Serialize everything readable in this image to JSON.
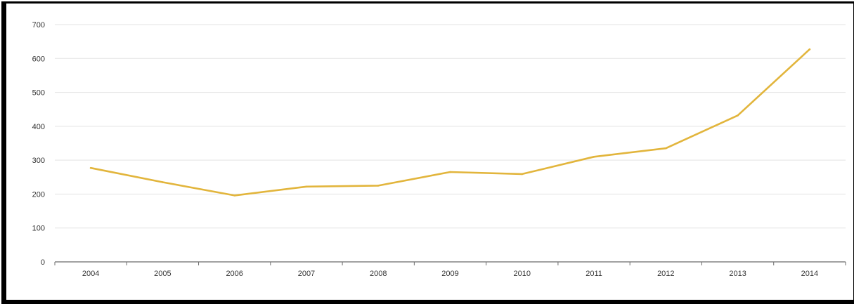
{
  "chart_data": {
    "type": "line",
    "title": "",
    "xlabel": "",
    "ylabel": "",
    "categories": [
      "2004",
      "2005",
      "2006",
      "2007",
      "2008",
      "2009",
      "2010",
      "2011",
      "2012",
      "2013",
      "2014"
    ],
    "series": [
      {
        "values": [
          277,
          235,
          196,
          222,
          225,
          265,
          259,
          310,
          335,
          432,
          627
        ],
        "color": "#e2b53c"
      }
    ],
    "ylim": [
      0,
      700
    ],
    "yticks": [
      0,
      100,
      200,
      300,
      400,
      500,
      600,
      700
    ],
    "ytick_labels": [
      "0",
      "100",
      "200",
      "300",
      "400",
      "500",
      "600",
      "700"
    ],
    "grid": true,
    "gridline_color": "#e3e3e3",
    "legend": "none"
  }
}
